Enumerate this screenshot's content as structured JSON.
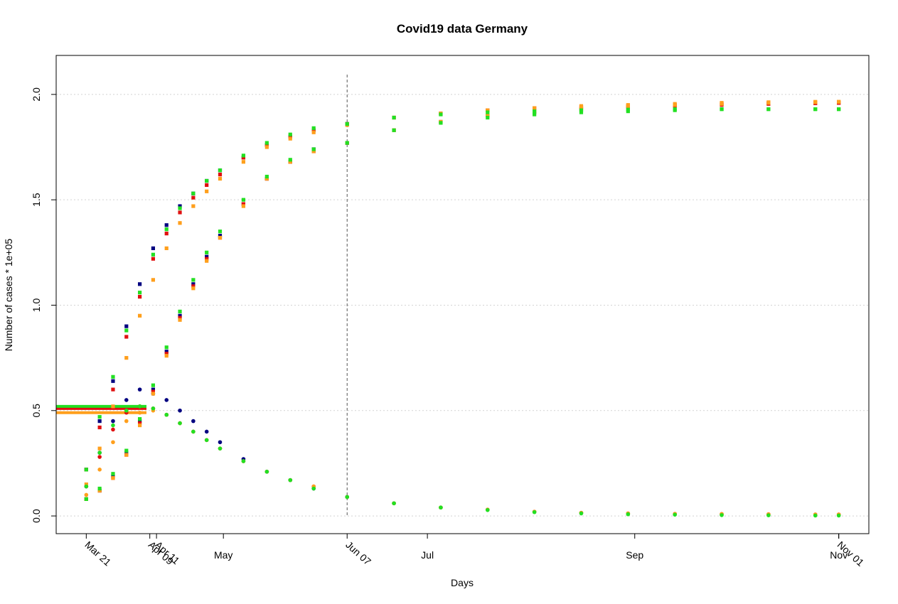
{
  "chart_data": {
    "type": "scatter",
    "title": "Covid19 data Germany",
    "xlabel": "Days",
    "ylabel": "Number of cases * 1e+05",
    "xlim": [
      "Mar 12",
      "Nov 10"
    ],
    "ylim": [
      -0.084,
      2.185
    ],
    "yticks": [
      {
        "value": 0,
        "label": "0.0"
      },
      0.5,
      {
        "value": 1,
        "label": "1.0"
      },
      1.5,
      {
        "value": 2,
        "label": "2.0"
      }
    ],
    "xticks": [
      {
        "value": "May 01",
        "label": "May"
      },
      {
        "value": "Jul 01",
        "label": "Jul"
      },
      {
        "value": "Sep 01",
        "label": "Sep"
      },
      {
        "value": "Nov 01",
        "label": "Nov"
      }
    ],
    "xticks_rotated": [
      "Mar 21",
      "Apr 09",
      "Apr 11",
      "Jun 07",
      "Nov 01"
    ],
    "vline": "Jun 07",
    "grid": true,
    "x": [
      "Mar 21",
      "Mar 25",
      "Mar 29",
      "Apr 02",
      "Apr 06",
      "Apr 10",
      "Apr 14",
      "Apr 18",
      "Apr 22",
      "Apr 26",
      "Apr 30",
      "May 07",
      "May 14",
      "May 21",
      "May 28",
      "Jun 07",
      "Jun 21",
      "Jul 05",
      "Jul 19",
      "Aug 02",
      "Aug 16",
      "Aug 30",
      "Sep 13",
      "Sep 27",
      "Oct 11",
      "Oct 25",
      "Nov 01"
    ],
    "series": [
      {
        "color": "#ff9f1c",
        "marker": "line",
        "x": [
          "Mar 12",
          "Apr 08"
        ],
        "values": [
          0.49,
          0.49
        ]
      },
      {
        "color": "#e01010",
        "marker": "line",
        "x": [
          "Mar 12",
          "Apr 08"
        ],
        "values": [
          0.51,
          0.51
        ]
      },
      {
        "color": "#22e022",
        "marker": "line",
        "x": [
          "Mar 12",
          "Apr 08"
        ],
        "values": [
          0.52,
          0.52
        ]
      },
      {
        "color": "#000080",
        "marker": "square",
        "values": [
          0.22,
          0.45,
          0.64,
          0.9,
          1.1,
          1.27,
          1.38,
          1.47,
          1.53,
          1.59,
          1.64,
          1.7,
          1.76,
          1.8,
          1.83,
          1.86,
          null,
          null,
          null,
          null,
          null,
          null,
          null,
          null,
          null,
          null,
          null
        ]
      },
      {
        "color": "#000080",
        "marker": "square",
        "values": [
          0.08,
          0.12,
          0.19,
          0.3,
          0.45,
          0.6,
          0.78,
          0.95,
          1.1,
          1.23,
          1.33,
          1.48,
          1.6,
          1.68,
          1.74,
          1.77,
          null,
          null,
          null,
          null,
          null,
          null,
          null,
          null,
          null,
          null,
          null
        ]
      },
      {
        "color": "#000080",
        "marker": "circle",
        "values": [
          0.14,
          0.3,
          0.45,
          0.55,
          0.6,
          0.58,
          0.55,
          0.5,
          0.45,
          0.4,
          0.35,
          0.27,
          0.21,
          0.17,
          0.13,
          0.09,
          null,
          null,
          null,
          null,
          null,
          null,
          null,
          null,
          null,
          null,
          null
        ]
      },
      {
        "color": "#e01010",
        "marker": "square",
        "values": [
          0.22,
          0.42,
          0.6,
          0.85,
          1.04,
          1.22,
          1.34,
          1.44,
          1.51,
          1.57,
          1.62,
          1.7,
          1.76,
          1.8,
          1.83,
          1.86,
          1.89,
          1.91,
          1.925,
          1.935,
          1.94,
          1.945,
          1.95,
          1.955,
          1.958,
          1.96,
          1.96
        ]
      },
      {
        "color": "#e01010",
        "marker": "square",
        "values": [
          0.08,
          0.12,
          0.18,
          0.29,
          0.44,
          0.59,
          0.77,
          0.94,
          1.09,
          1.22,
          1.32,
          1.48,
          1.6,
          1.68,
          1.73,
          1.77,
          1.83,
          1.87,
          1.9,
          1.915,
          1.93,
          1.94,
          1.945,
          1.95,
          1.955,
          1.958,
          1.96
        ]
      },
      {
        "color": "#e01010",
        "marker": "circle",
        "values": [
          0.14,
          0.28,
          0.41,
          0.49,
          0.52,
          0.51,
          0.48,
          0.44,
          0.4,
          0.36,
          0.32,
          0.26,
          0.21,
          0.17,
          0.14,
          0.09,
          0.06,
          0.04,
          0.03,
          0.02,
          0.015,
          0.012,
          0.01,
          0.009,
          0.008,
          0.007,
          0.007
        ]
      },
      {
        "color": "#ff9f1c",
        "marker": "square",
        "values": [
          0.15,
          0.32,
          0.52,
          0.75,
          0.95,
          1.12,
          1.27,
          1.39,
          1.47,
          1.54,
          1.6,
          1.68,
          1.75,
          1.79,
          1.82,
          1.855,
          1.89,
          1.91,
          1.925,
          1.935,
          1.945,
          1.95,
          1.955,
          1.96,
          1.963,
          1.965,
          1.965
        ]
      },
      {
        "color": "#ff9f1c",
        "marker": "square",
        "values": [
          0.08,
          0.12,
          0.18,
          0.29,
          0.43,
          0.58,
          0.76,
          0.93,
          1.08,
          1.21,
          1.32,
          1.47,
          1.6,
          1.68,
          1.73,
          1.77,
          1.83,
          1.87,
          1.9,
          1.92,
          1.935,
          1.945,
          1.95,
          1.955,
          1.96,
          1.963,
          1.965
        ]
      },
      {
        "color": "#ff9f1c",
        "marker": "circle",
        "values": [
          0.1,
          0.22,
          0.35,
          0.45,
          0.49,
          0.5,
          0.48,
          0.44,
          0.4,
          0.36,
          0.32,
          0.26,
          0.21,
          0.17,
          0.14,
          0.09,
          0.06,
          0.04,
          0.03,
          0.02,
          0.015,
          0.012,
          0.01,
          0.009,
          0.008,
          0.007,
          0.007
        ]
      },
      {
        "color": "#22e022",
        "marker": "square",
        "values": [
          0.22,
          0.47,
          0.66,
          0.88,
          1.06,
          1.24,
          1.36,
          1.46,
          1.53,
          1.59,
          1.64,
          1.71,
          1.77,
          1.81,
          1.84,
          1.86,
          1.89,
          1.905,
          1.915,
          1.92,
          1.925,
          1.928,
          1.93,
          1.93,
          1.93,
          1.93,
          1.93
        ]
      },
      {
        "color": "#22e022",
        "marker": "square",
        "values": [
          0.08,
          0.13,
          0.2,
          0.31,
          0.46,
          0.62,
          0.8,
          0.97,
          1.12,
          1.25,
          1.35,
          1.5,
          1.61,
          1.69,
          1.74,
          1.77,
          1.83,
          1.865,
          1.89,
          1.905,
          1.915,
          1.92,
          1.925,
          1.93,
          1.93,
          1.93,
          1.93
        ]
      },
      {
        "color": "#22e022",
        "marker": "circle",
        "values": [
          0.14,
          0.3,
          0.43,
          0.5,
          0.52,
          0.51,
          0.48,
          0.44,
          0.4,
          0.36,
          0.32,
          0.26,
          0.21,
          0.17,
          0.13,
          0.09,
          0.06,
          0.04,
          0.028,
          0.018,
          0.012,
          0.008,
          0.006,
          0.004,
          0.003,
          0.002,
          0.002
        ]
      }
    ]
  }
}
